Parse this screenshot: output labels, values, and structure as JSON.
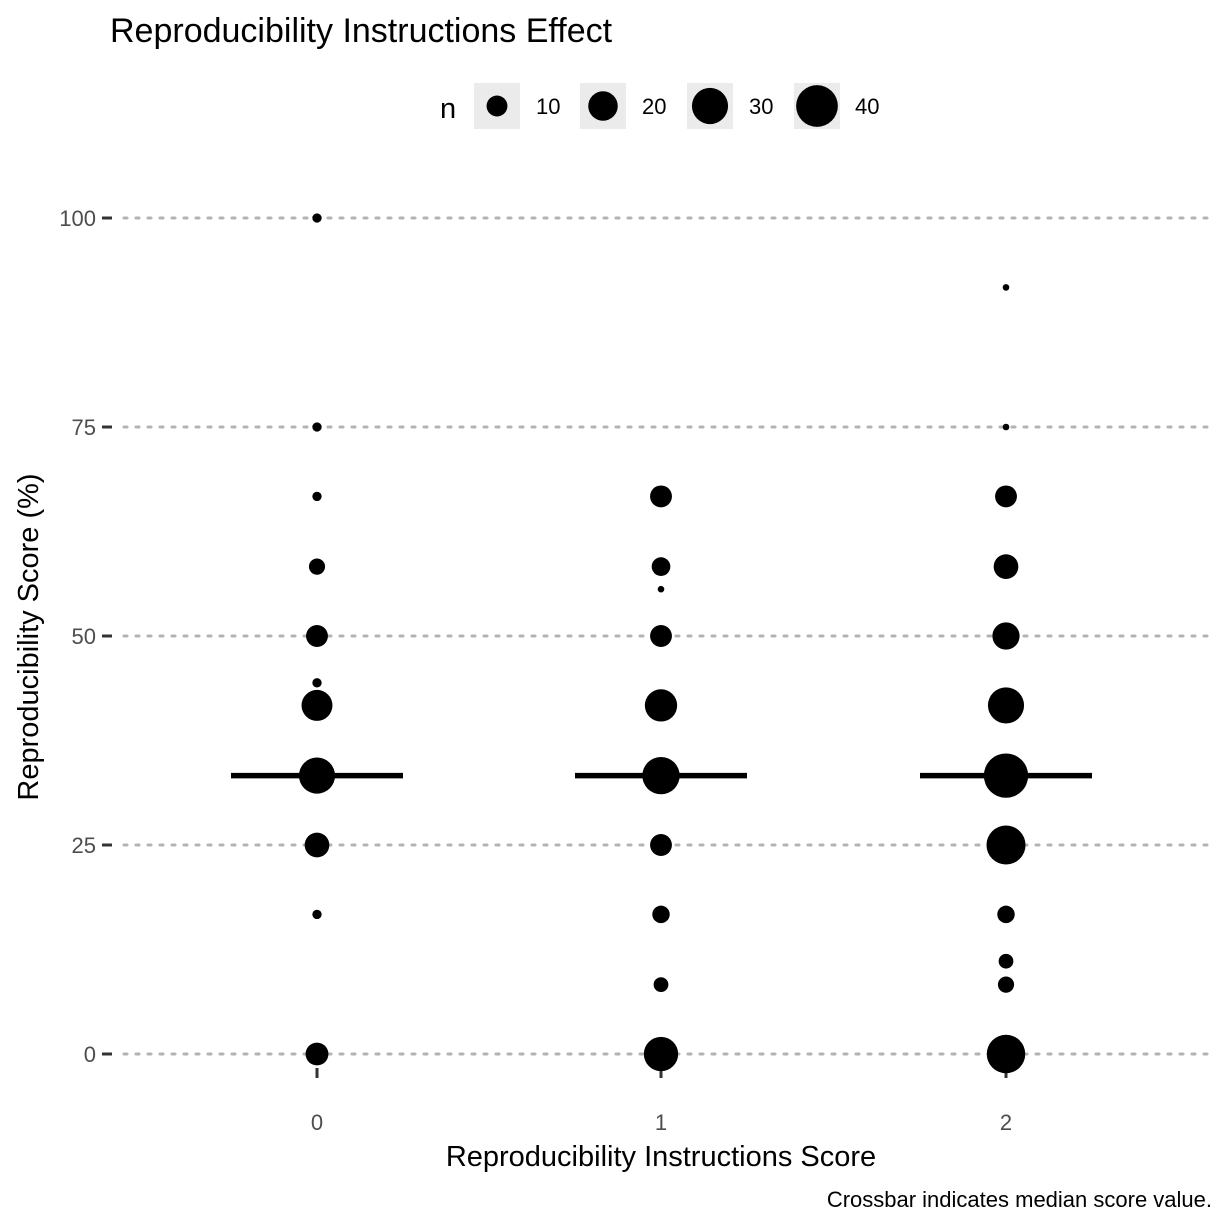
{
  "chart_data": {
    "type": "scatter",
    "title": "Reproducibility Instructions Effect",
    "xlabel": "Reproducibility Instructions Score",
    "ylabel": "Reproducibility Score (%)",
    "caption": "Crossbar indicates median score value.",
    "x_categories": [
      "0",
      "1",
      "2"
    ],
    "y_ticks": [
      0,
      25,
      50,
      75,
      100
    ],
    "ylim": [
      0,
      100
    ],
    "grid": "horizontal-dotted",
    "legend": {
      "title": "n",
      "position": "top",
      "entries": [
        {
          "label": "10",
          "n": 10
        },
        {
          "label": "20",
          "n": 20
        },
        {
          "label": "30",
          "n": 30
        },
        {
          "label": "40",
          "n": 40
        }
      ]
    },
    "points": [
      {
        "x": "0",
        "y": 100,
        "n": 2
      },
      {
        "x": "0",
        "y": 75,
        "n": 2
      },
      {
        "x": "0",
        "y": 66.7,
        "n": 2
      },
      {
        "x": "0",
        "y": 58.3,
        "n": 6
      },
      {
        "x": "0",
        "y": 50,
        "n": 11
      },
      {
        "x": "0",
        "y": 44.4,
        "n": 2
      },
      {
        "x": "0",
        "y": 41.7,
        "n": 22
      },
      {
        "x": "0",
        "y": 33.3,
        "n": 30
      },
      {
        "x": "0",
        "y": 25,
        "n": 14
      },
      {
        "x": "0",
        "y": 16.7,
        "n": 2
      },
      {
        "x": "0",
        "y": 0,
        "n": 12
      },
      {
        "x": "1",
        "y": 66.7,
        "n": 11
      },
      {
        "x": "1",
        "y": 58.3,
        "n": 8
      },
      {
        "x": "1",
        "y": 55.6,
        "n": 1
      },
      {
        "x": "1",
        "y": 50,
        "n": 11
      },
      {
        "x": "1",
        "y": 41.7,
        "n": 24
      },
      {
        "x": "1",
        "y": 33.3,
        "n": 32
      },
      {
        "x": "1",
        "y": 25,
        "n": 11
      },
      {
        "x": "1",
        "y": 16.7,
        "n": 7
      },
      {
        "x": "1",
        "y": 8.3,
        "n": 5
      },
      {
        "x": "1",
        "y": 0,
        "n": 27
      },
      {
        "x": "2",
        "y": 91.7,
        "n": 1
      },
      {
        "x": "2",
        "y": 75,
        "n": 1
      },
      {
        "x": "2",
        "y": 66.7,
        "n": 11
      },
      {
        "x": "2",
        "y": 58.3,
        "n": 14
      },
      {
        "x": "2",
        "y": 50,
        "n": 17
      },
      {
        "x": "2",
        "y": 41.7,
        "n": 30
      },
      {
        "x": "2",
        "y": 33.3,
        "n": 45
      },
      {
        "x": "2",
        "y": 25,
        "n": 35
      },
      {
        "x": "2",
        "y": 16.7,
        "n": 7
      },
      {
        "x": "2",
        "y": 11.1,
        "n": 5
      },
      {
        "x": "2",
        "y": 8.3,
        "n": 6
      },
      {
        "x": "2",
        "y": 0,
        "n": 34
      }
    ],
    "medians": [
      {
        "x": "0",
        "y": 33.3
      },
      {
        "x": "1",
        "y": 33.3
      },
      {
        "x": "2",
        "y": 33.3
      }
    ]
  }
}
